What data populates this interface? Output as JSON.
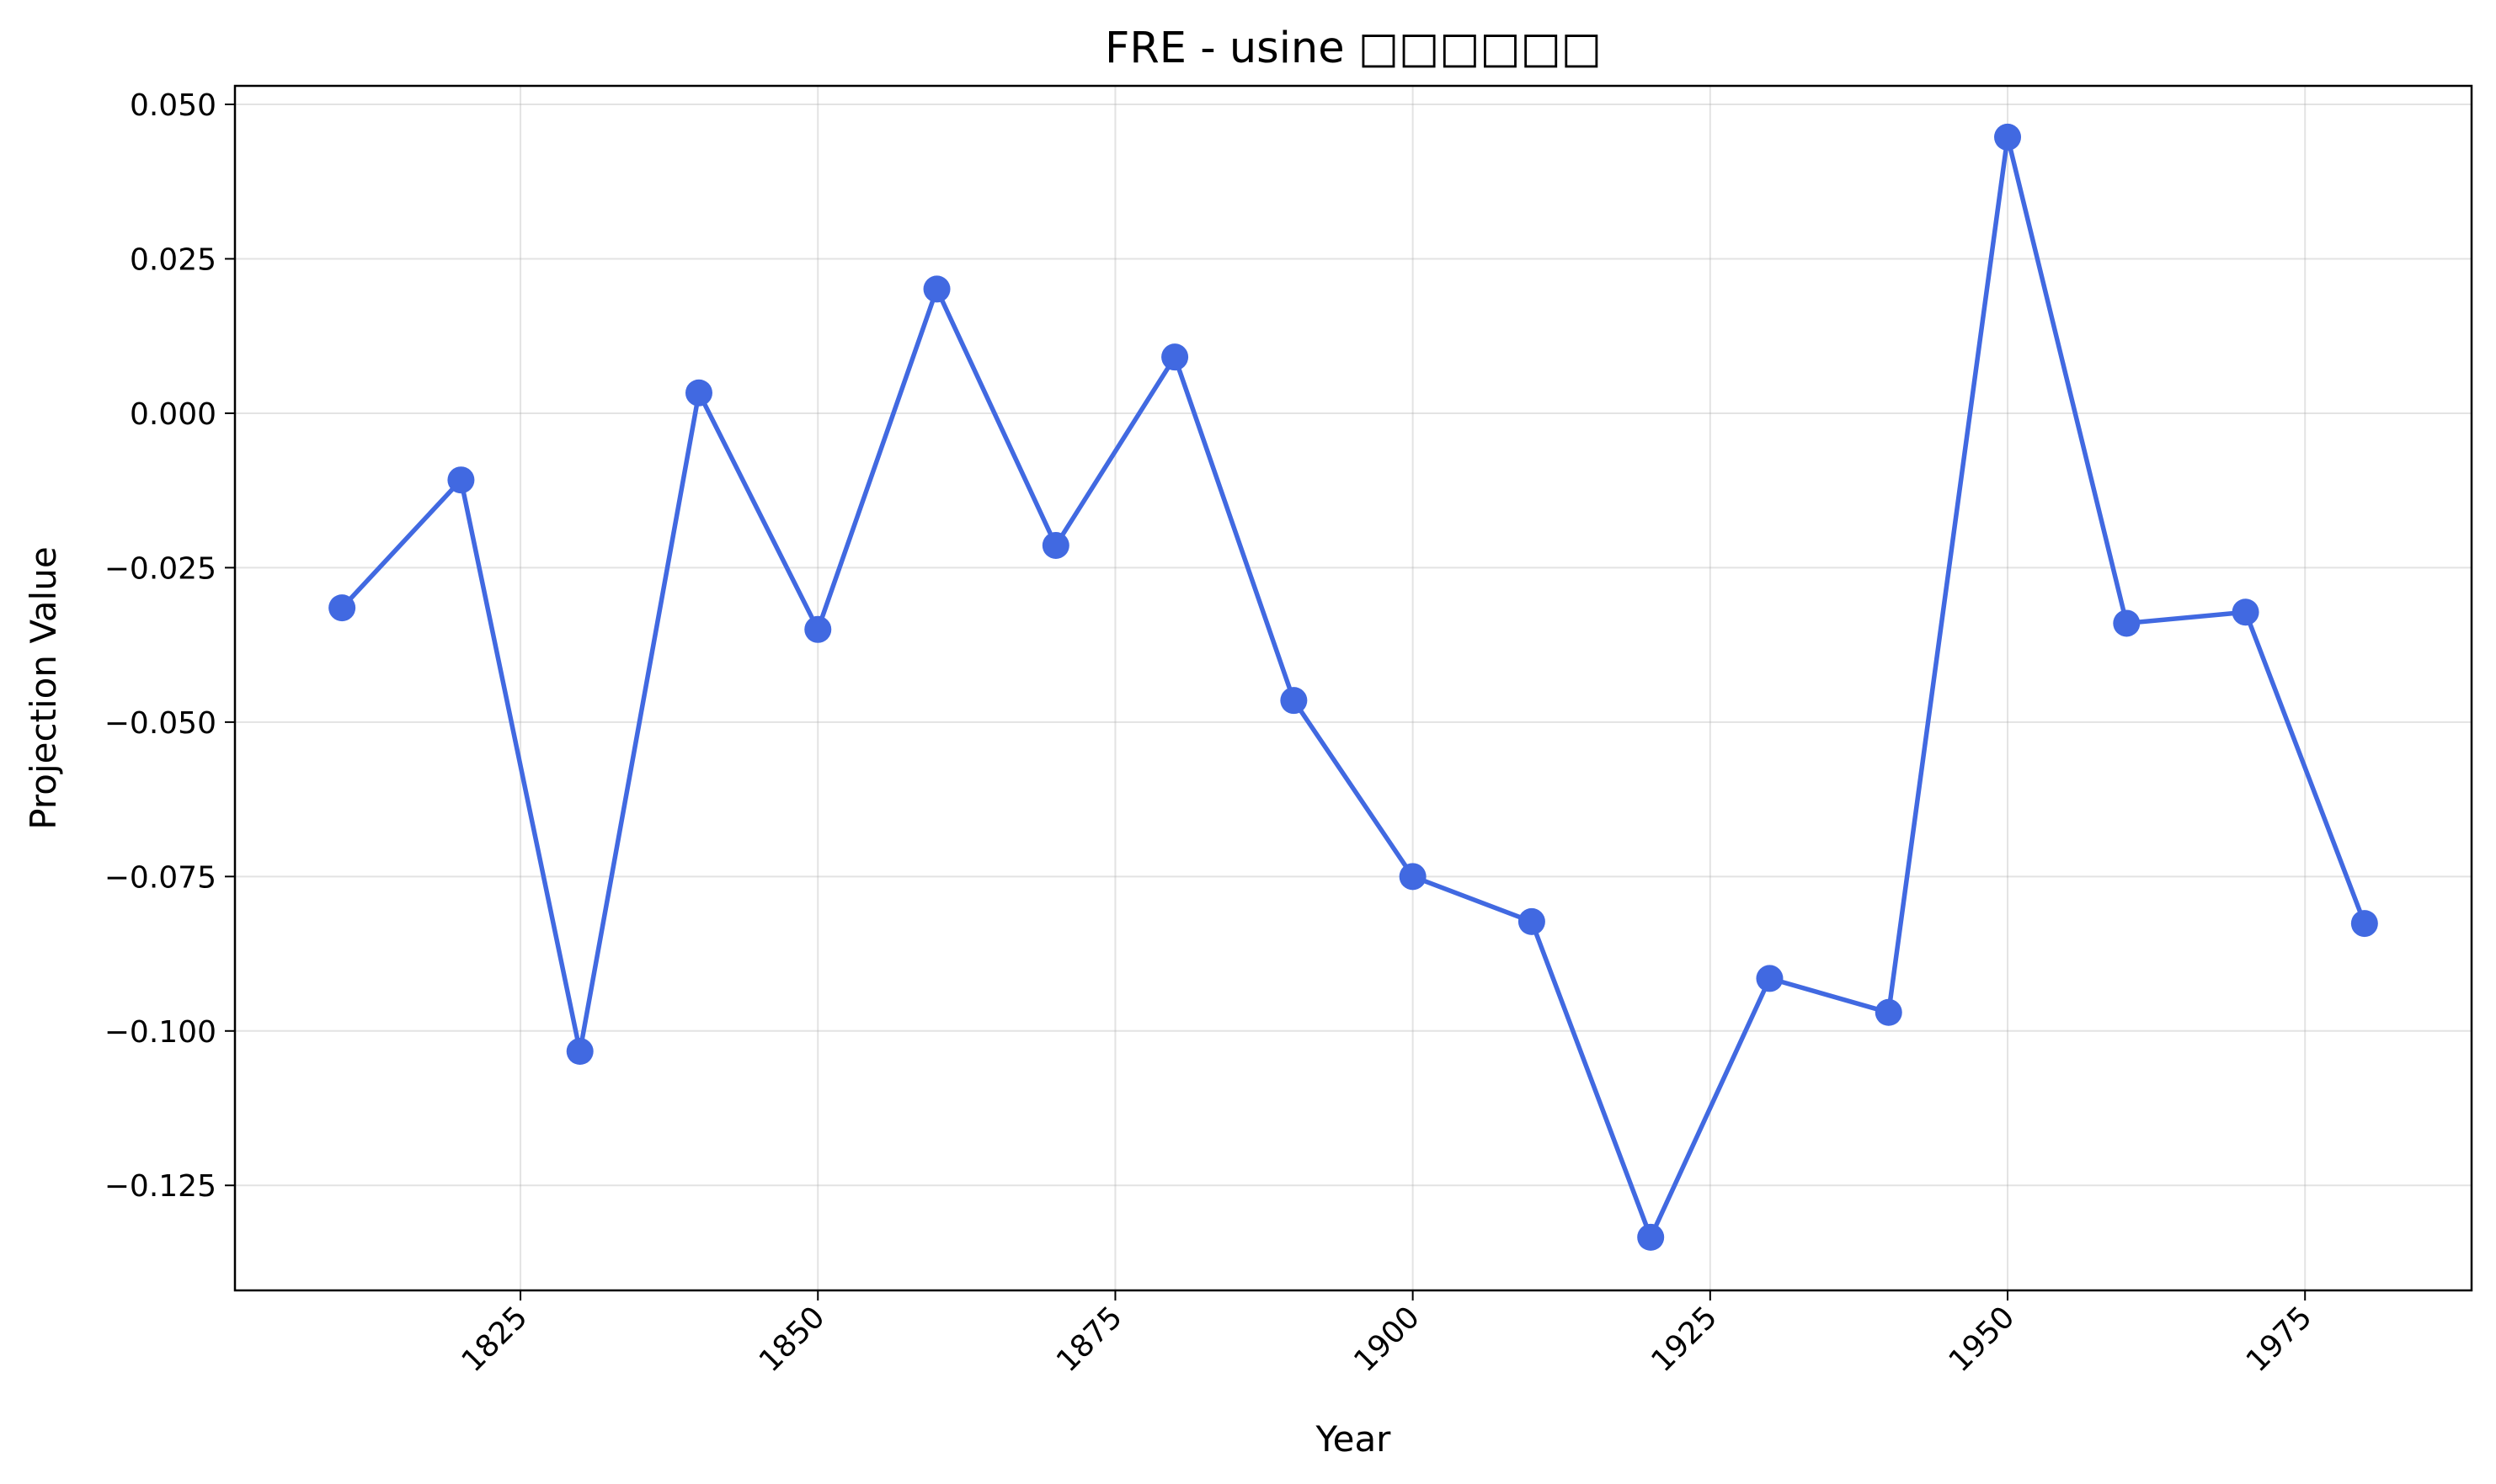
{
  "chart_data": {
    "type": "line",
    "title": "FRE - usine □□□□□□",
    "xlabel": "Year",
    "ylabel": "Projection Value",
    "xlim": [
      1801,
      1989
    ],
    "ylim": [
      -0.142,
      0.053
    ],
    "x_ticks": [
      1825,
      1850,
      1875,
      1900,
      1925,
      1950,
      1975
    ],
    "y_ticks": [
      0.05,
      0.025,
      0.0,
      -0.025,
      -0.05,
      -0.075,
      -0.1,
      -0.125
    ],
    "y_tick_labels": [
      "0.050",
      "0.025",
      "0.000",
      "−0.025",
      "−0.050",
      "−0.075",
      "−0.100",
      "−0.125"
    ],
    "grid": true,
    "legend": "none",
    "series": [
      {
        "color": "#4169E1",
        "marker": "circle",
        "x": [
          1810,
          1820,
          1830,
          1840,
          1850,
          1860,
          1870,
          1880,
          1890,
          1900,
          1910,
          1920,
          1930,
          1940,
          1950,
          1960,
          1970,
          1980
        ],
        "y": [
          -0.0315,
          -0.0108,
          -0.1033,
          0.0033,
          -0.035,
          0.0201,
          -0.0214,
          0.0091,
          -0.0465,
          -0.075,
          -0.0823,
          -0.1334,
          -0.0915,
          -0.097,
          0.0447,
          -0.034,
          -0.0322,
          -0.0826
        ]
      }
    ]
  }
}
